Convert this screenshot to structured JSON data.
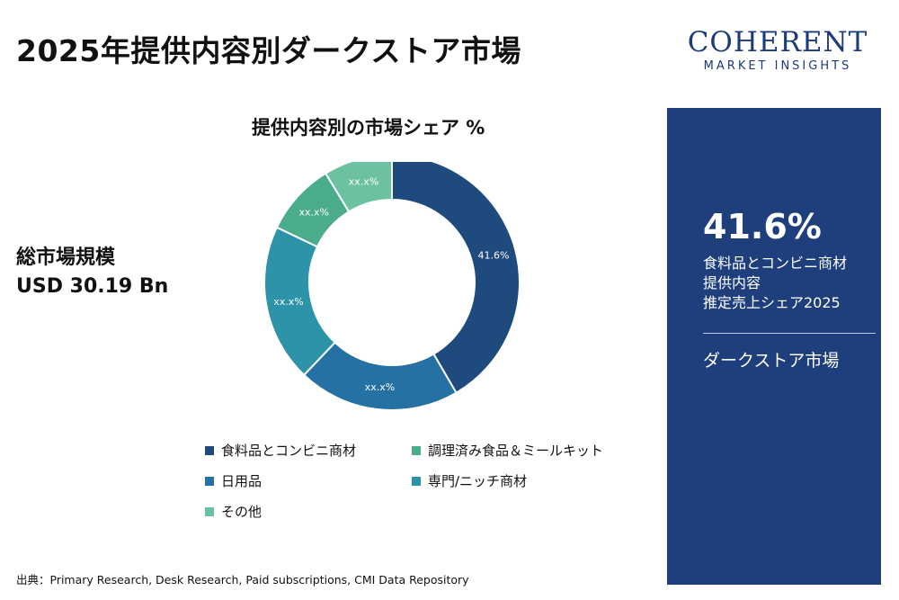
{
  "page": {
    "title": "2025年提供内容別ダークストア市場",
    "total_label": "総市場規模",
    "total_value": "USD 30.19 Bn",
    "source": "出典：Primary Research, Desk Research, Paid subscriptions, CMI Data Repository"
  },
  "logo": {
    "main": "COHERENT",
    "sub": "MARKET INSIGHTS"
  },
  "panel": {
    "value": "41.6%",
    "desc_lines": [
      "食料品とコンビニ商材",
      "提供内容",
      "推定売上シェア2025"
    ],
    "market": "ダークストア市場"
  },
  "colors": {
    "panel_bg": "#1e3f7c",
    "brand": "#1c3b7a"
  },
  "chart_data": {
    "type": "donut",
    "title": "提供内容別の市場シェア %",
    "legend_position": "bottom",
    "slices": [
      {
        "name": "食料品とコンビニ商材",
        "value": 41.6,
        "label": "41.6%",
        "color": "#1e4a7e",
        "show_in_chart": true
      },
      {
        "name": "日用品",
        "value": 20.5,
        "label": "xx.x%",
        "color": "#2671a4",
        "show_in_chart": true
      },
      {
        "name": "専門/ニッチ商材",
        "value": 20.0,
        "label": "xx.x%",
        "color": "#2c93a8",
        "show_in_chart": true
      },
      {
        "name": "調理済み食品＆ミールキット",
        "value": 9.2,
        "label": "xx.x%",
        "color": "#4aab8d",
        "show_in_chart": true
      },
      {
        "name": "その他",
        "value": 8.7,
        "label": "xx.x%",
        "color": "#6cc2a0",
        "show_in_chart": true
      }
    ],
    "legend_order": [
      "食料品とコンビニ商材",
      "調理済み食品＆ミールキット",
      "日用品",
      "専門/ニッチ商材",
      "その他"
    ]
  }
}
